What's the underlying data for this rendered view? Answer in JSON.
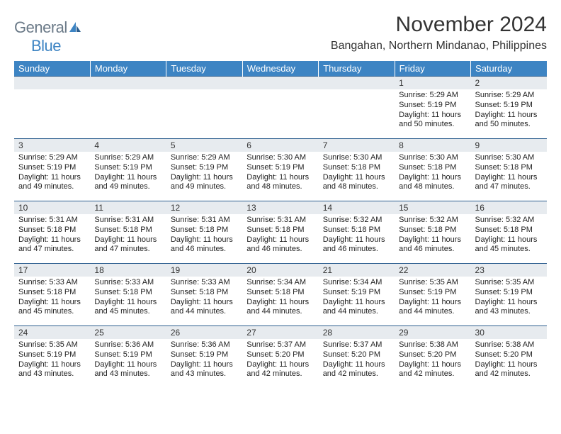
{
  "brand": {
    "text1": "General",
    "text2": "Blue"
  },
  "title": "November 2024",
  "location": "Bangahan, Northern Mindanao, Philippines",
  "header_bg": "#3d84c3",
  "header_fg": "#ffffff",
  "daynum_bg": "#e7ebef",
  "border_color": "#2d5e8f",
  "weekdays": [
    "Sunday",
    "Monday",
    "Tuesday",
    "Wednesday",
    "Thursday",
    "Friday",
    "Saturday"
  ],
  "weeks": [
    [
      {
        "n": "",
        "lines": []
      },
      {
        "n": "",
        "lines": []
      },
      {
        "n": "",
        "lines": []
      },
      {
        "n": "",
        "lines": []
      },
      {
        "n": "",
        "lines": []
      },
      {
        "n": "1",
        "lines": [
          "Sunrise: 5:29 AM",
          "Sunset: 5:19 PM",
          "Daylight: 11 hours and 50 minutes."
        ]
      },
      {
        "n": "2",
        "lines": [
          "Sunrise: 5:29 AM",
          "Sunset: 5:19 PM",
          "Daylight: 11 hours and 50 minutes."
        ]
      }
    ],
    [
      {
        "n": "3",
        "lines": [
          "Sunrise: 5:29 AM",
          "Sunset: 5:19 PM",
          "Daylight: 11 hours and 49 minutes."
        ]
      },
      {
        "n": "4",
        "lines": [
          "Sunrise: 5:29 AM",
          "Sunset: 5:19 PM",
          "Daylight: 11 hours and 49 minutes."
        ]
      },
      {
        "n": "5",
        "lines": [
          "Sunrise: 5:29 AM",
          "Sunset: 5:19 PM",
          "Daylight: 11 hours and 49 minutes."
        ]
      },
      {
        "n": "6",
        "lines": [
          "Sunrise: 5:30 AM",
          "Sunset: 5:19 PM",
          "Daylight: 11 hours and 48 minutes."
        ]
      },
      {
        "n": "7",
        "lines": [
          "Sunrise: 5:30 AM",
          "Sunset: 5:18 PM",
          "Daylight: 11 hours and 48 minutes."
        ]
      },
      {
        "n": "8",
        "lines": [
          "Sunrise: 5:30 AM",
          "Sunset: 5:18 PM",
          "Daylight: 11 hours and 48 minutes."
        ]
      },
      {
        "n": "9",
        "lines": [
          "Sunrise: 5:30 AM",
          "Sunset: 5:18 PM",
          "Daylight: 11 hours and 47 minutes."
        ]
      }
    ],
    [
      {
        "n": "10",
        "lines": [
          "Sunrise: 5:31 AM",
          "Sunset: 5:18 PM",
          "Daylight: 11 hours and 47 minutes."
        ]
      },
      {
        "n": "11",
        "lines": [
          "Sunrise: 5:31 AM",
          "Sunset: 5:18 PM",
          "Daylight: 11 hours and 47 minutes."
        ]
      },
      {
        "n": "12",
        "lines": [
          "Sunrise: 5:31 AM",
          "Sunset: 5:18 PM",
          "Daylight: 11 hours and 46 minutes."
        ]
      },
      {
        "n": "13",
        "lines": [
          "Sunrise: 5:31 AM",
          "Sunset: 5:18 PM",
          "Daylight: 11 hours and 46 minutes."
        ]
      },
      {
        "n": "14",
        "lines": [
          "Sunrise: 5:32 AM",
          "Sunset: 5:18 PM",
          "Daylight: 11 hours and 46 minutes."
        ]
      },
      {
        "n": "15",
        "lines": [
          "Sunrise: 5:32 AM",
          "Sunset: 5:18 PM",
          "Daylight: 11 hours and 46 minutes."
        ]
      },
      {
        "n": "16",
        "lines": [
          "Sunrise: 5:32 AM",
          "Sunset: 5:18 PM",
          "Daylight: 11 hours and 45 minutes."
        ]
      }
    ],
    [
      {
        "n": "17",
        "lines": [
          "Sunrise: 5:33 AM",
          "Sunset: 5:18 PM",
          "Daylight: 11 hours and 45 minutes."
        ]
      },
      {
        "n": "18",
        "lines": [
          "Sunrise: 5:33 AM",
          "Sunset: 5:18 PM",
          "Daylight: 11 hours and 45 minutes."
        ]
      },
      {
        "n": "19",
        "lines": [
          "Sunrise: 5:33 AM",
          "Sunset: 5:18 PM",
          "Daylight: 11 hours and 44 minutes."
        ]
      },
      {
        "n": "20",
        "lines": [
          "Sunrise: 5:34 AM",
          "Sunset: 5:18 PM",
          "Daylight: 11 hours and 44 minutes."
        ]
      },
      {
        "n": "21",
        "lines": [
          "Sunrise: 5:34 AM",
          "Sunset: 5:19 PM",
          "Daylight: 11 hours and 44 minutes."
        ]
      },
      {
        "n": "22",
        "lines": [
          "Sunrise: 5:35 AM",
          "Sunset: 5:19 PM",
          "Daylight: 11 hours and 44 minutes."
        ]
      },
      {
        "n": "23",
        "lines": [
          "Sunrise: 5:35 AM",
          "Sunset: 5:19 PM",
          "Daylight: 11 hours and 43 minutes."
        ]
      }
    ],
    [
      {
        "n": "24",
        "lines": [
          "Sunrise: 5:35 AM",
          "Sunset: 5:19 PM",
          "Daylight: 11 hours and 43 minutes."
        ]
      },
      {
        "n": "25",
        "lines": [
          "Sunrise: 5:36 AM",
          "Sunset: 5:19 PM",
          "Daylight: 11 hours and 43 minutes."
        ]
      },
      {
        "n": "26",
        "lines": [
          "Sunrise: 5:36 AM",
          "Sunset: 5:19 PM",
          "Daylight: 11 hours and 43 minutes."
        ]
      },
      {
        "n": "27",
        "lines": [
          "Sunrise: 5:37 AM",
          "Sunset: 5:20 PM",
          "Daylight: 11 hours and 42 minutes."
        ]
      },
      {
        "n": "28",
        "lines": [
          "Sunrise: 5:37 AM",
          "Sunset: 5:20 PM",
          "Daylight: 11 hours and 42 minutes."
        ]
      },
      {
        "n": "29",
        "lines": [
          "Sunrise: 5:38 AM",
          "Sunset: 5:20 PM",
          "Daylight: 11 hours and 42 minutes."
        ]
      },
      {
        "n": "30",
        "lines": [
          "Sunrise: 5:38 AM",
          "Sunset: 5:20 PM",
          "Daylight: 11 hours and 42 minutes."
        ]
      }
    ]
  ]
}
